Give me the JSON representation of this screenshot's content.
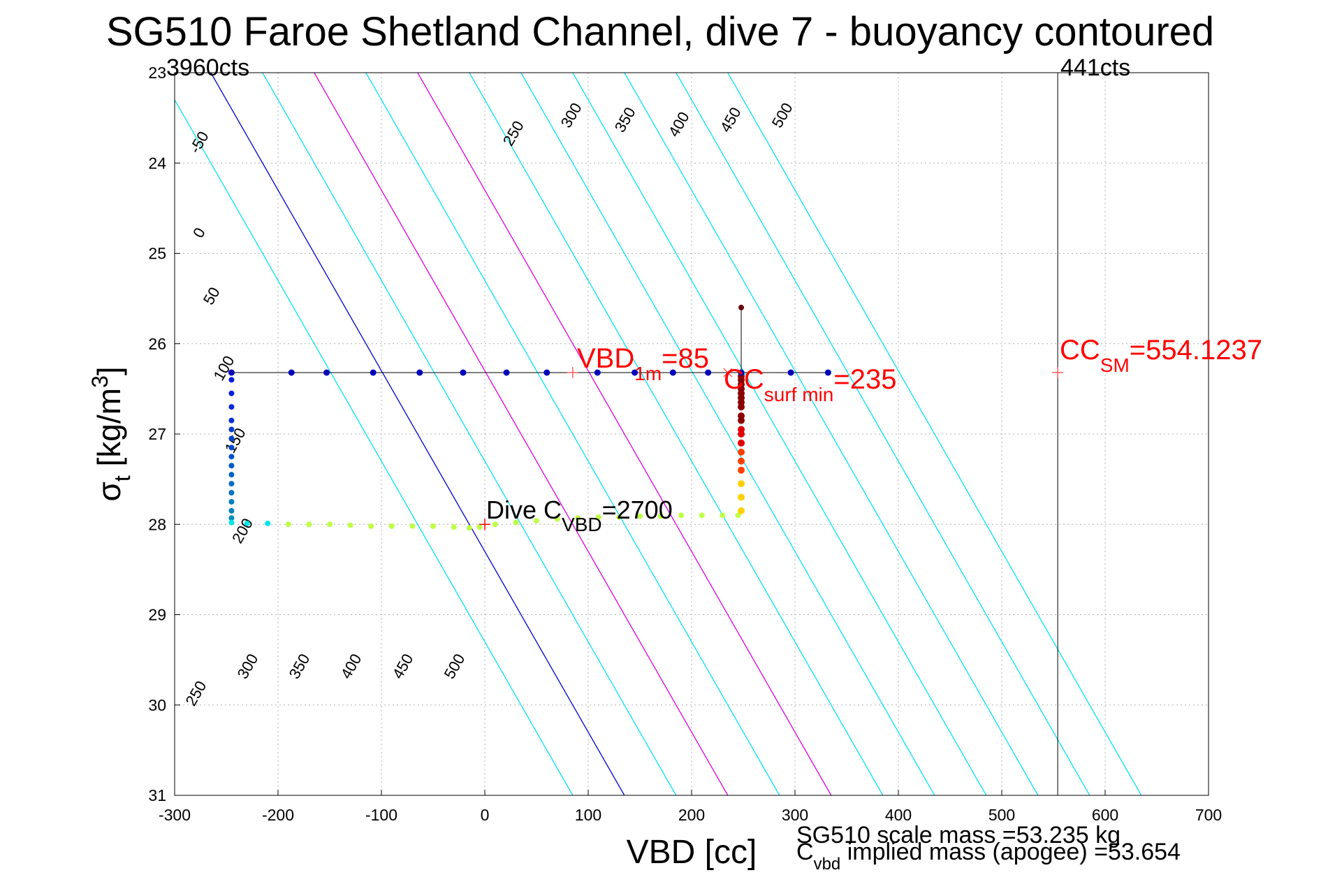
{
  "chart_data": {
    "type": "scatter",
    "title": "SG510 Faroe Shetland Channel, dive 7 - buoyancy contoured",
    "xlabel": "VBD [cc]",
    "ylabel_main": "σ",
    "ylabel_sub": "t",
    "ylabel_rest": " [kg/m",
    "ylabel_sup": "3",
    "ylabel_close": "]",
    "xlim": [
      -300,
      700
    ],
    "ylim": [
      23,
      31
    ],
    "y_reversed": true,
    "grid": true,
    "x_ticks": [
      "-300",
      "-200",
      "-100",
      "0",
      "100",
      "200",
      "300",
      "400",
      "500",
      "600",
      "700"
    ],
    "y_ticks": [
      "23",
      "24",
      "25",
      "26",
      "27",
      "28",
      "29",
      "30",
      "31"
    ],
    "count_labels": {
      "left": "3960cts",
      "right": "441cts"
    },
    "cc_max_line_x": 554.1237,
    "buoyancy_contours": [
      {
        "label": "-50",
        "x_at_23": -315,
        "color": "#00e5ee"
      },
      {
        "label": "0",
        "x_at_23": -265,
        "color": "#0000cc"
      },
      {
        "label": "50",
        "x_at_23": -215,
        "color": "#00e5ee"
      },
      {
        "label": "100",
        "x_at_23": -165,
        "color": "#dd00dd"
      },
      {
        "label": "150",
        "x_at_23": -115,
        "color": "#00e5ee"
      },
      {
        "label": "200",
        "x_at_23": -65,
        "color": "#dd00dd"
      },
      {
        "label": "250",
        "x_at_23": -15,
        "color": "#00e5ee"
      },
      {
        "label": "300",
        "x_at_23": 35,
        "color": "#00e5ee"
      },
      {
        "label": "350",
        "x_at_23": 85,
        "color": "#00e5ee"
      },
      {
        "label": "400",
        "x_at_23": 135,
        "color": "#00e5ee"
      },
      {
        "label": "450",
        "x_at_23": 185,
        "color": "#00e5ee"
      },
      {
        "label": "500",
        "x_at_23": 235,
        "color": "#00e5ee"
      }
    ],
    "contour_labels": [
      {
        "text": "-50",
        "x": -272,
        "y": 23.8
      },
      {
        "text": "0",
        "x": -272,
        "y": 24.8
      },
      {
        "text": "50",
        "x": -260,
        "y": 25.5
      },
      {
        "text": "250",
        "x": 32,
        "y": 23.7
      },
      {
        "text": "300",
        "x": 88,
        "y": 23.5
      },
      {
        "text": "350",
        "x": 140,
        "y": 23.55
      },
      {
        "text": "400",
        "x": 192,
        "y": 23.6
      },
      {
        "text": "450",
        "x": 242,
        "y": 23.55
      },
      {
        "text": "500",
        "x": 292,
        "y": 23.5
      },
      {
        "text": "100",
        "x": -248,
        "y": 26.3
      },
      {
        "text": "150",
        "x": -237,
        "y": 27.1
      },
      {
        "text": "200",
        "x": -230,
        "y": 28.1
      },
      {
        "text": "250",
        "x": -275,
        "y": 29.9
      },
      {
        "text": "300",
        "x": -225,
        "y": 29.6
      },
      {
        "text": "350",
        "x": -175,
        "y": 29.6
      },
      {
        "text": "400",
        "x": -125,
        "y": 29.6
      },
      {
        "text": "450",
        "x": -75,
        "y": 29.6
      },
      {
        "text": "500",
        "x": -25,
        "y": 29.6
      }
    ],
    "surface_series": {
      "x": [
        -245,
        -187,
        -153,
        -108,
        -63,
        -21,
        21,
        60,
        109,
        145,
        182,
        216,
        248,
        296,
        332
      ],
      "y": [
        26.32,
        26.32,
        26.32,
        26.32,
        26.32,
        26.32,
        26.32,
        26.32,
        26.32,
        26.32,
        26.32,
        26.32,
        26.32,
        26.32,
        26.32
      ]
    },
    "dive_series": {
      "x": [
        -245,
        -245,
        -245,
        -245,
        -245,
        -245,
        -245,
        -245,
        -245,
        -245,
        -245,
        -245,
        -245,
        -245,
        -245,
        -245,
        -230,
        -210,
        -190,
        -170,
        -150,
        -130,
        -110,
        -90,
        -70,
        -50,
        -30,
        -15,
        -5,
        10,
        30,
        50,
        70,
        90,
        110,
        130,
        150,
        170,
        190,
        210,
        230,
        245
      ],
      "y": [
        26.4,
        26.55,
        26.7,
        26.85,
        26.95,
        27.05,
        27.15,
        27.25,
        27.35,
        27.45,
        27.55,
        27.65,
        27.75,
        27.85,
        27.93,
        27.98,
        27.99,
        27.99,
        28.0,
        28.0,
        28.0,
        28.01,
        28.02,
        28.02,
        28.02,
        28.02,
        28.03,
        28.04,
        28.03,
        28.0,
        27.98,
        27.96,
        27.94,
        27.93,
        27.92,
        27.92,
        27.91,
        27.91,
        27.9,
        27.9,
        27.9,
        27.9
      ]
    },
    "climb_series": {
      "x": [
        248,
        248,
        248,
        248,
        248,
        248,
        248,
        248,
        248,
        248,
        248,
        248,
        248,
        248,
        248,
        248,
        248,
        248,
        248
      ],
      "y": [
        27.85,
        27.7,
        27.55,
        27.4,
        27.3,
        27.2,
        27.1,
        27.0,
        26.95,
        26.85,
        26.8,
        26.7,
        26.65,
        26.6,
        26.55,
        26.5,
        26.45,
        26.4,
        26.36
      ]
    },
    "apex_point": {
      "x": 248,
      "y": 25.6
    },
    "annotations": {
      "vbd1m": {
        "prefix": "VBD",
        "sub": "1m",
        "suffix": "=85",
        "x": 85,
        "y": 26.32,
        "color": "#ff0000"
      },
      "ccsurf": {
        "prefix": "CC",
        "sub": "surf min",
        "suffix": "=235",
        "x": 235,
        "y": 26.32,
        "color": "#ff0000"
      },
      "ccsm": {
        "prefix": "CC",
        "sub": "SM",
        "suffix": "=554.1237",
        "x": 554.1237,
        "y": 26.32,
        "color": "#ff0000"
      },
      "divec": {
        "prefix": "Dive C",
        "sub": "VBD",
        "suffix": "=2700",
        "x": 0,
        "y": 28.0,
        "color": "#000000"
      }
    },
    "footer": {
      "scale_mass": "SG510 scale mass =53.235 kg",
      "implied_prefix": "C",
      "implied_sub": "vbd",
      "implied_suffix": " implied mass (apogee) =53.654"
    }
  }
}
